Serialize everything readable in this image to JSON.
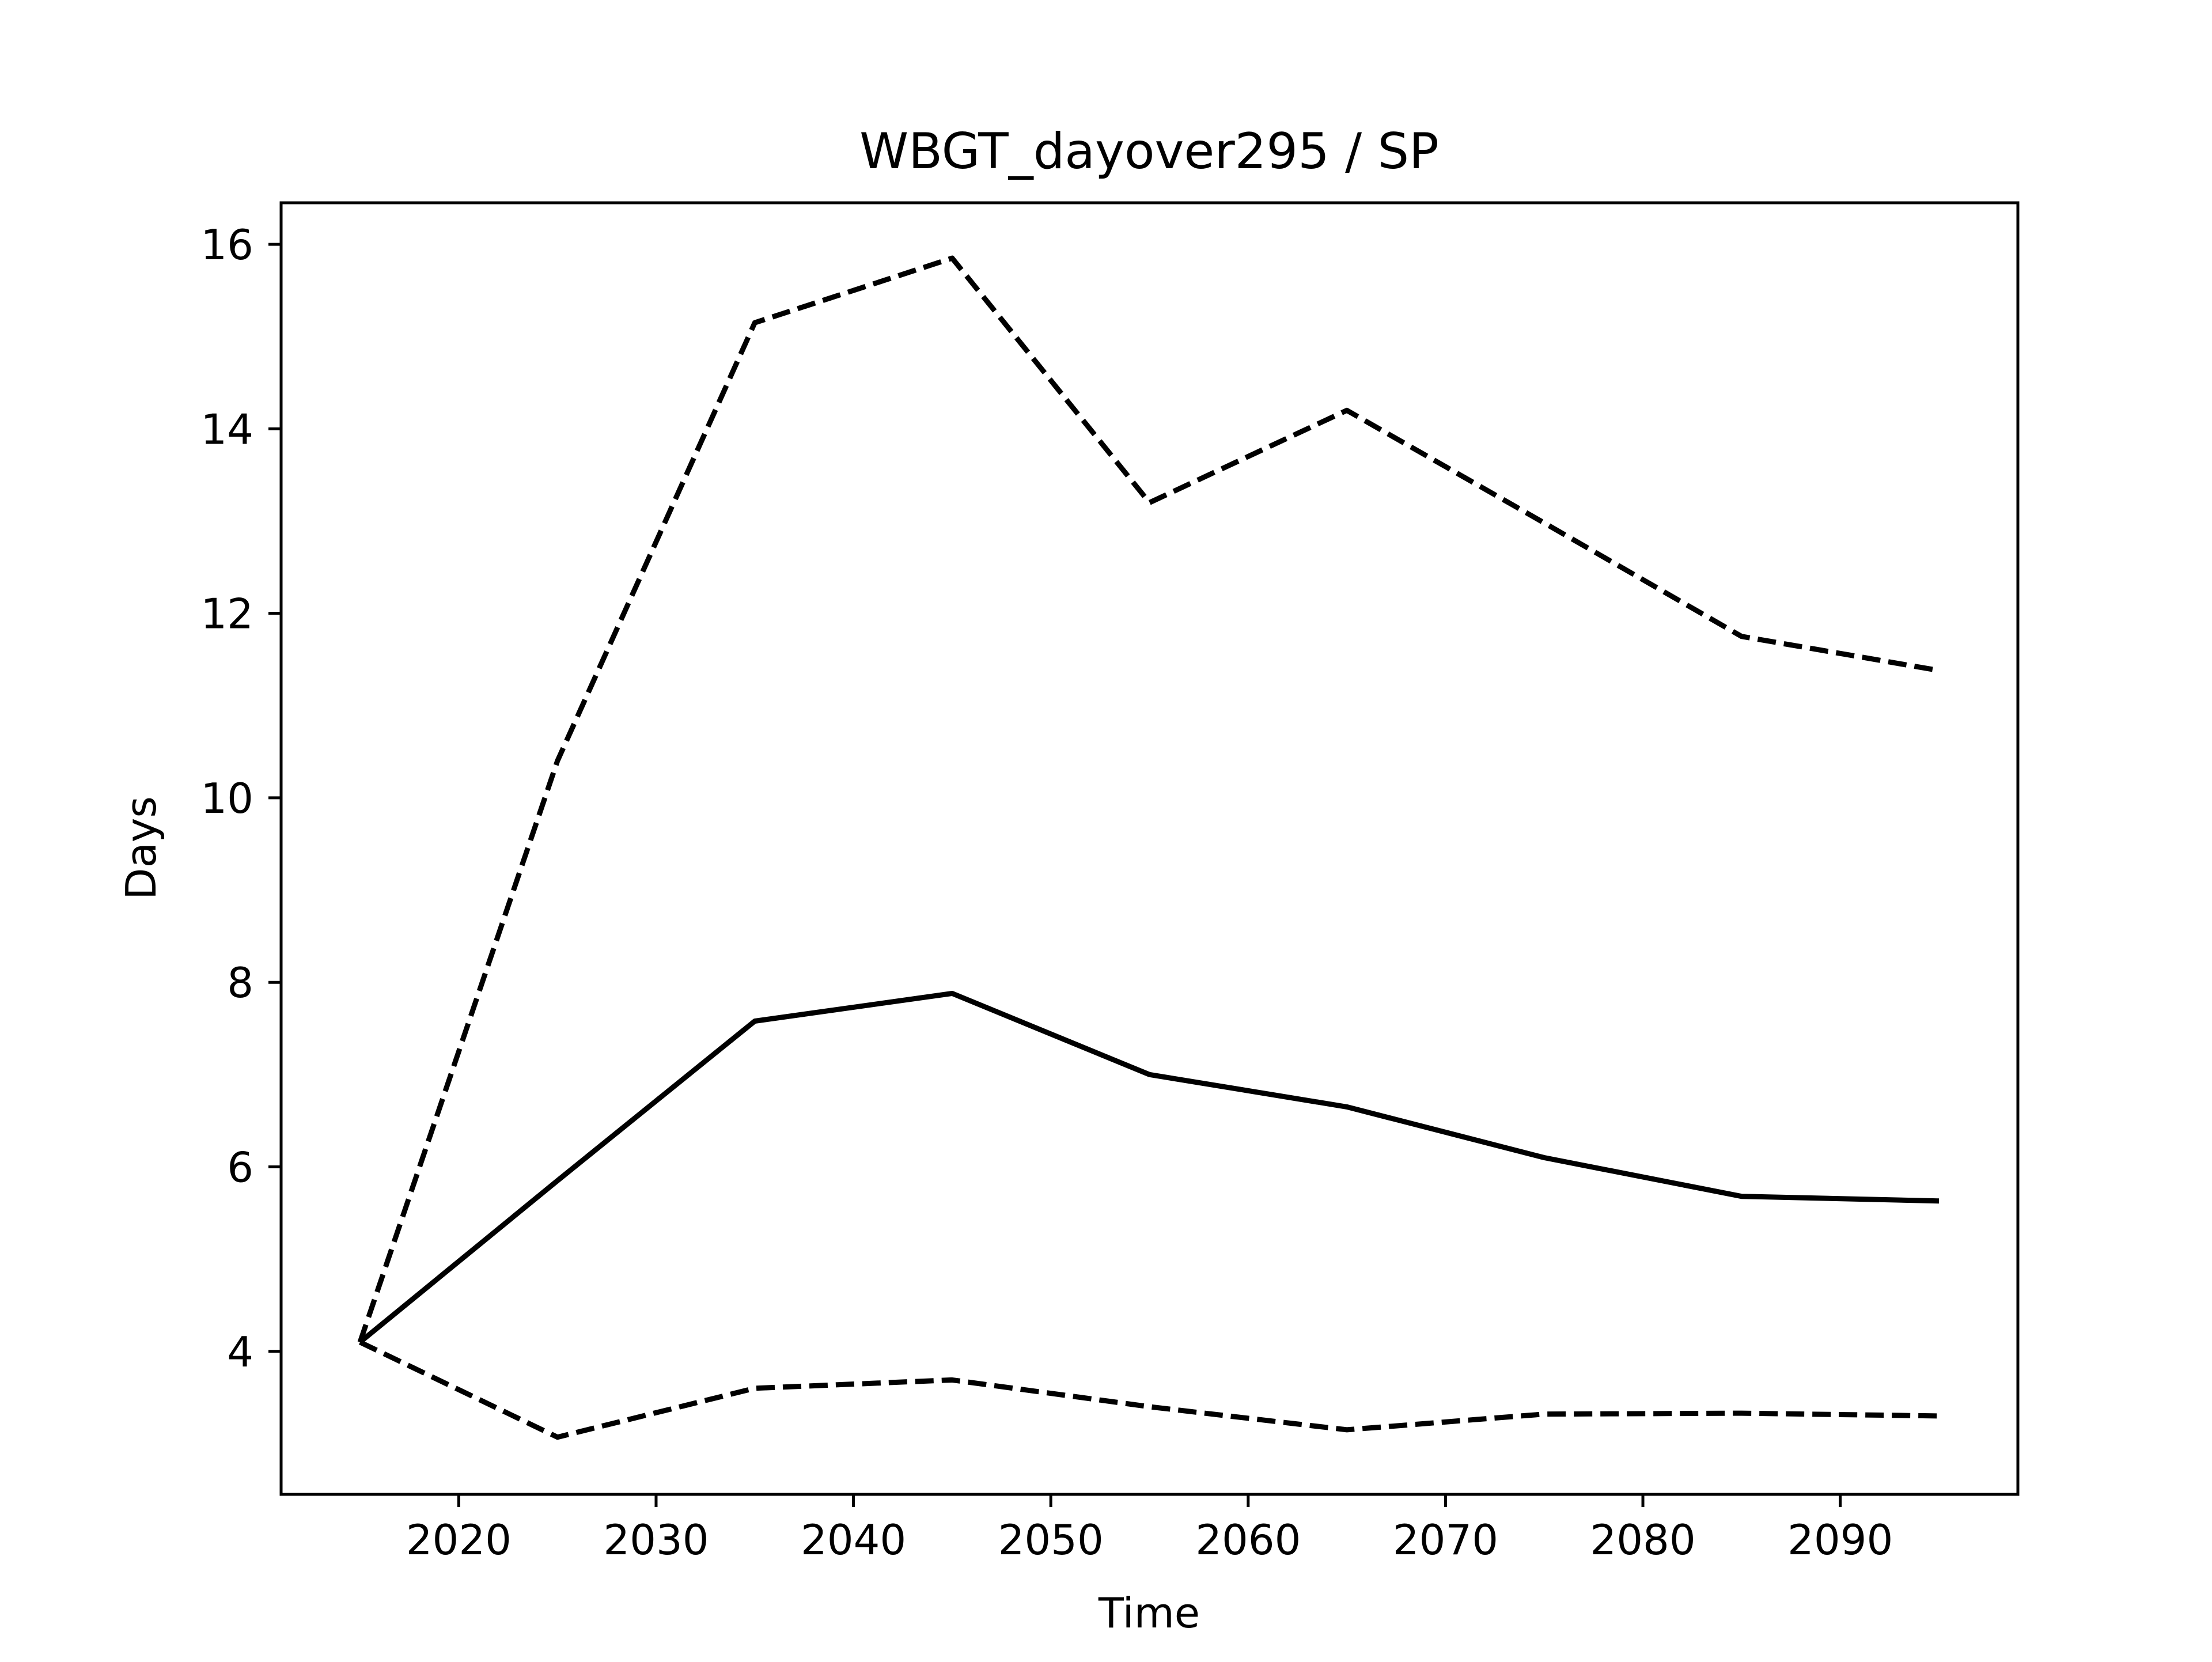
{
  "chart_data": {
    "type": "line",
    "title": "WBGT_dayover295 / SP",
    "xlabel": "Time",
    "ylabel": "Days",
    "xlim": [
      2011,
      2099
    ],
    "ylim": [
      2.45,
      16.45
    ],
    "xticks": [
      2020,
      2030,
      2040,
      2050,
      2060,
      2070,
      2080,
      2090
    ],
    "yticks": [
      4,
      6,
      8,
      10,
      12,
      14,
      16
    ],
    "grid": false,
    "legend": "none",
    "x": [
      2015,
      2025,
      2035,
      2045,
      2055,
      2065,
      2075,
      2085,
      2095
    ],
    "series": [
      {
        "style": "solid",
        "color": "#000000",
        "values": [
          4.1,
          5.85,
          7.58,
          7.88,
          7.0,
          6.65,
          6.1,
          5.68,
          5.63
        ]
      },
      {
        "style": "dashed",
        "color": "#000000",
        "values": [
          4.1,
          10.4,
          15.15,
          15.85,
          13.2,
          14.2,
          12.98,
          11.75,
          11.38
        ]
      },
      {
        "style": "dashed",
        "color": "#000000",
        "values": [
          4.1,
          3.07,
          3.6,
          3.69,
          3.4,
          3.15,
          3.32,
          3.33,
          3.3
        ]
      }
    ]
  }
}
